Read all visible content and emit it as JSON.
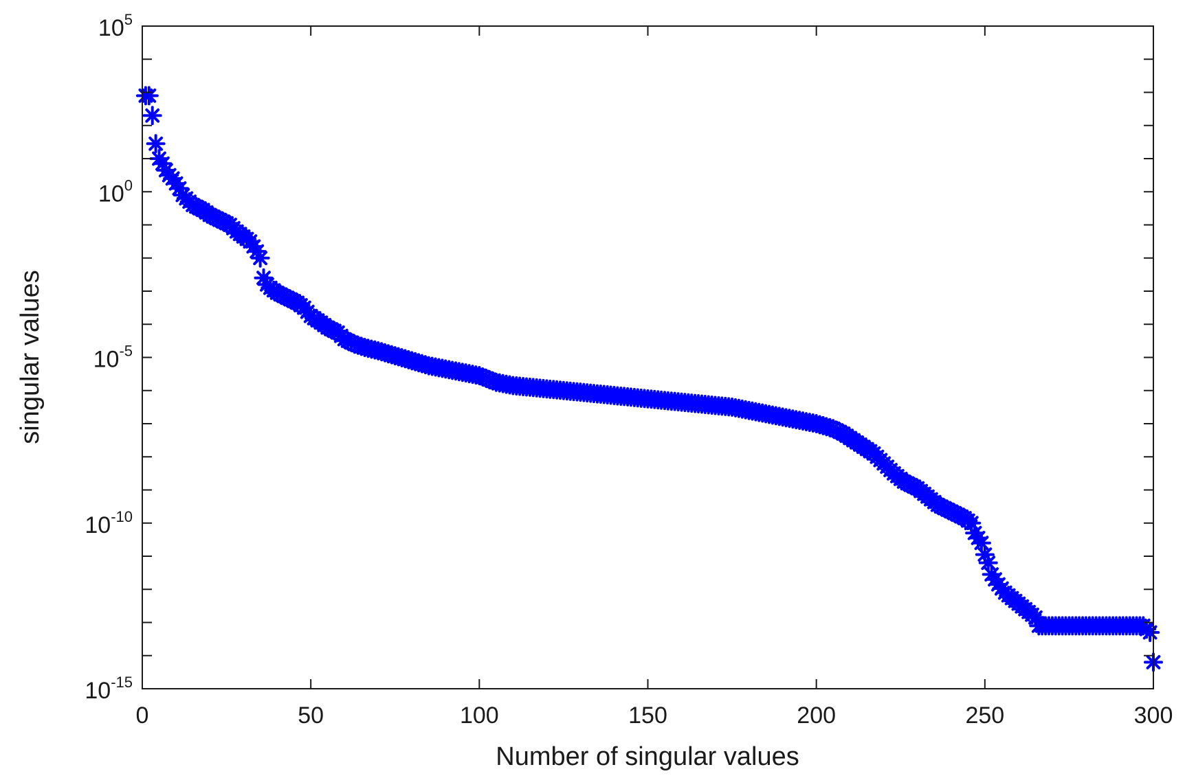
{
  "chart_data": {
    "type": "scatter",
    "title": "",
    "xlabel": "Number of singular values",
    "ylabel": "singular values",
    "xlim": [
      0,
      300
    ],
    "ylim_log10": [
      -15,
      5
    ],
    "yscale": "log",
    "marker": "asterisk",
    "marker_color": "#0000ff",
    "grid": false,
    "legend": "none",
    "x_ticks": [
      0,
      50,
      100,
      150,
      200,
      250,
      300
    ],
    "x_tick_labels": [
      "0",
      "50",
      "100",
      "150",
      "200",
      "250",
      "300"
    ],
    "y_ticks_log10": [
      -15,
      -10,
      -5,
      0,
      5
    ],
    "y_tick_labels": [
      {
        "base": "10",
        "exp": "-15"
      },
      {
        "base": "10",
        "exp": "-10"
      },
      {
        "base": "10",
        "exp": "-5"
      },
      {
        "base": "10",
        "exp": "0"
      },
      {
        "base": "10",
        "exp": "5"
      }
    ],
    "series": [
      {
        "values_log10_by_index": [
          [
            1,
            2.9
          ],
          [
            2,
            2.9
          ],
          [
            3,
            2.3
          ],
          [
            4,
            1.45
          ],
          [
            5,
            1.0
          ],
          [
            6,
            0.85
          ],
          [
            7,
            0.65
          ],
          [
            8,
            0.5
          ],
          [
            9,
            0.4
          ],
          [
            10,
            0.25
          ],
          [
            11,
            0.1
          ],
          [
            12,
            -0.1
          ],
          [
            13,
            -0.2
          ],
          [
            14,
            -0.3
          ],
          [
            15,
            -0.4
          ],
          [
            18,
            -0.55
          ],
          [
            20,
            -0.7
          ],
          [
            23,
            -0.85
          ],
          [
            26,
            -1.0
          ],
          [
            28,
            -1.2
          ],
          [
            30,
            -1.35
          ],
          [
            32,
            -1.5
          ],
          [
            34,
            -1.8
          ],
          [
            35,
            -2.0
          ],
          [
            36,
            -2.6
          ],
          [
            37,
            -2.8
          ],
          [
            38,
            -2.9
          ],
          [
            40,
            -3.05
          ],
          [
            43,
            -3.2
          ],
          [
            46,
            -3.35
          ],
          [
            48,
            -3.5
          ],
          [
            50,
            -3.75
          ],
          [
            53,
            -3.95
          ],
          [
            55,
            -4.1
          ],
          [
            58,
            -4.25
          ],
          [
            60,
            -4.45
          ],
          [
            63,
            -4.6
          ],
          [
            66,
            -4.7
          ],
          [
            70,
            -4.8
          ],
          [
            75,
            -4.95
          ],
          [
            80,
            -5.1
          ],
          [
            85,
            -5.25
          ],
          [
            90,
            -5.35
          ],
          [
            95,
            -5.45
          ],
          [
            100,
            -5.55
          ],
          [
            105,
            -5.75
          ],
          [
            110,
            -5.85
          ],
          [
            115,
            -5.9
          ],
          [
            120,
            -5.95
          ],
          [
            125,
            -6.0
          ],
          [
            130,
            -6.05
          ],
          [
            135,
            -6.1
          ],
          [
            140,
            -6.15
          ],
          [
            145,
            -6.2
          ],
          [
            150,
            -6.25
          ],
          [
            155,
            -6.3
          ],
          [
            160,
            -6.35
          ],
          [
            165,
            -6.4
          ],
          [
            170,
            -6.45
          ],
          [
            175,
            -6.5
          ],
          [
            180,
            -6.6
          ],
          [
            185,
            -6.7
          ],
          [
            190,
            -6.8
          ],
          [
            195,
            -6.9
          ],
          [
            200,
            -7.0
          ],
          [
            205,
            -7.15
          ],
          [
            208,
            -7.3
          ],
          [
            211,
            -7.5
          ],
          [
            214,
            -7.7
          ],
          [
            217,
            -7.9
          ],
          [
            220,
            -8.2
          ],
          [
            223,
            -8.5
          ],
          [
            226,
            -8.75
          ],
          [
            230,
            -8.95
          ],
          [
            233,
            -9.2
          ],
          [
            236,
            -9.45
          ],
          [
            240,
            -9.65
          ],
          [
            244,
            -9.85
          ],
          [
            246,
            -10.0
          ],
          [
            247,
            -10.3
          ],
          [
            249,
            -10.6
          ],
          [
            250,
            -10.95
          ],
          [
            251,
            -11.2
          ],
          [
            252,
            -11.55
          ],
          [
            254,
            -11.85
          ],
          [
            256,
            -12.1
          ],
          [
            259,
            -12.35
          ],
          [
            262,
            -12.6
          ],
          [
            265,
            -12.85
          ],
          [
            266,
            -13.1
          ],
          [
            270,
            -13.1
          ],
          [
            280,
            -13.1
          ],
          [
            290,
            -13.1
          ],
          [
            297,
            -13.1
          ],
          [
            298,
            -13.2
          ],
          [
            299,
            -13.3
          ],
          [
            300,
            -14.2
          ]
        ]
      }
    ]
  }
}
